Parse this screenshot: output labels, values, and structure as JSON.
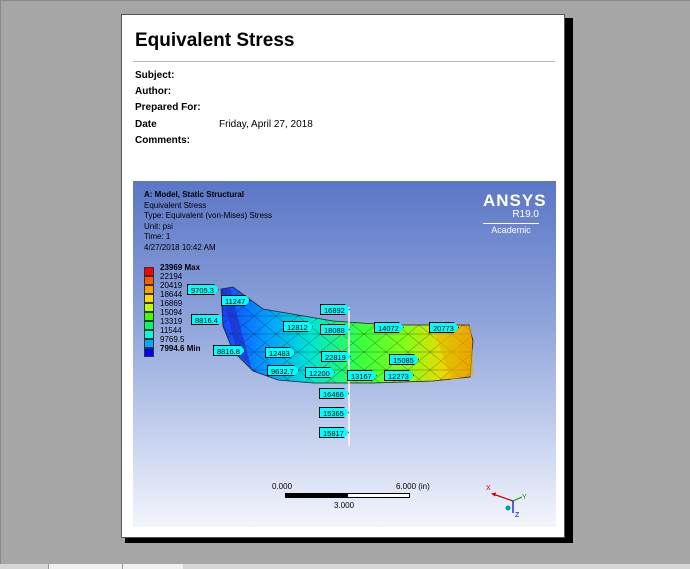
{
  "report": {
    "title": "Equivalent Stress",
    "fields": [
      {
        "label": "Subject:",
        "value": ""
      },
      {
        "label": "Author:",
        "value": ""
      },
      {
        "label": "Prepared For:",
        "value": ""
      },
      {
        "label": "Date",
        "value": "Friday, April 27, 2018"
      },
      {
        "label": "Comments:",
        "value": ""
      }
    ]
  },
  "viewport": {
    "header": "A: Model, Static Structural",
    "lines": [
      "Equivalent Stress",
      "Type: Equivalent (von-Mises) Stress",
      "Unit: psi",
      "Time: 1",
      "4/27/2018 10:42 AM"
    ],
    "brand": {
      "name": "ANSYS",
      "version": "R19.0",
      "edition": "Academic"
    }
  },
  "legend": {
    "entries": [
      {
        "label": "23969 Max",
        "color": "#ff0000",
        "bold": true
      },
      {
        "label": "22194",
        "color": "#ff5a00",
        "bold": false
      },
      {
        "label": "20419",
        "color": "#ffa000",
        "bold": false
      },
      {
        "label": "18644",
        "color": "#ffdc00",
        "bold": false
      },
      {
        "label": "16869",
        "color": "#bcff00",
        "bold": false
      },
      {
        "label": "15094",
        "color": "#3cff00",
        "bold": false
      },
      {
        "label": "13319",
        "color": "#00ff60",
        "bold": false
      },
      {
        "label": "11544",
        "color": "#00ffd4",
        "bold": false
      },
      {
        "label": "9769.5",
        "color": "#00aaff",
        "bold": false
      },
      {
        "label": "7994.6 Min",
        "color": "#0000ff",
        "bold": true
      }
    ]
  },
  "probes": [
    "9705.3",
    "11247",
    "8816.4",
    "16892",
    "12812",
    "18088",
    "14072",
    "20773",
    "8816.8",
    "12483",
    "22819",
    "15085",
    "9632.7",
    "12200",
    "13167",
    "12273",
    "16466",
    "15365",
    "15817"
  ],
  "scale_bar": {
    "left": "0.000",
    "right": "6.000 (in)",
    "middle": "3.000"
  },
  "triad": {
    "x_label": "X",
    "y_label": "Y",
    "z_label": "Z"
  }
}
